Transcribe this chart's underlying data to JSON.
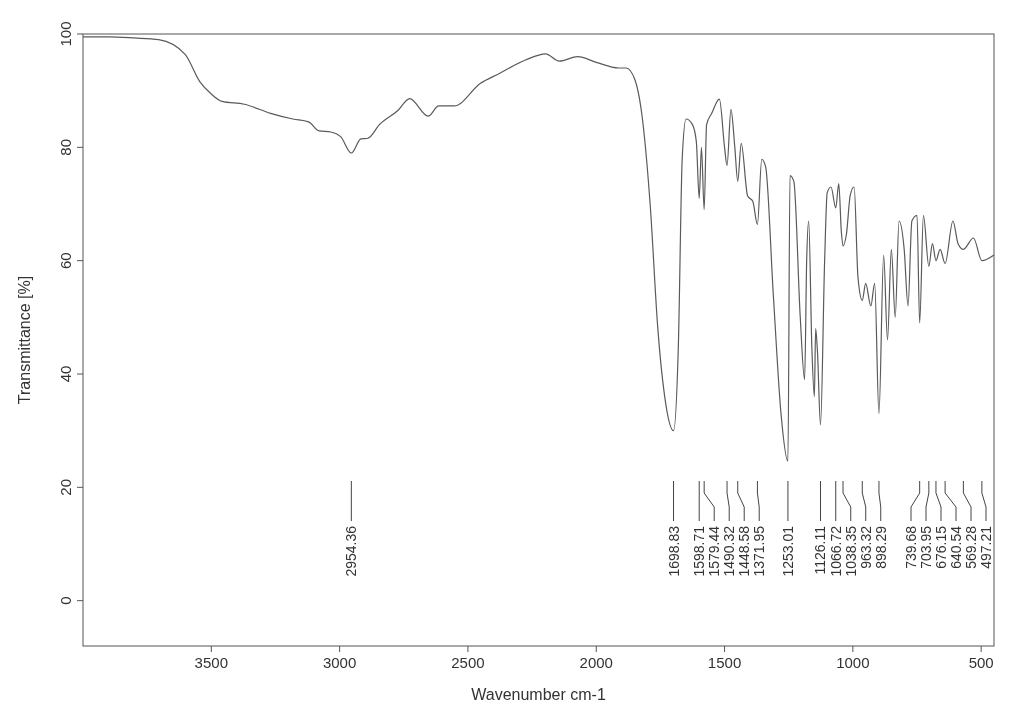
{
  "chart_data": {
    "type": "line",
    "xlabel": "Wavenumber cm-1",
    "ylabel": "Transmittance [%]",
    "xlim": [
      4000,
      450
    ],
    "ylim": [
      -8,
      100
    ],
    "xticks": [
      3500,
      3000,
      2500,
      2000,
      1500,
      1000,
      500
    ],
    "yticks": [
      0,
      20,
      40,
      60,
      80,
      100
    ],
    "series": [
      {
        "color": "#5a5a5a",
        "x": [
          4000,
          3900,
          3800,
          3705,
          3602,
          3545,
          3500,
          3458,
          3371,
          3269,
          3182,
          3121,
          3080,
          3034,
          2996,
          2954.36,
          2917,
          2890,
          2845,
          2773,
          2727,
          2655,
          2614,
          2553,
          2451,
          2379,
          2276,
          2197,
          2144,
          2072,
          2000,
          1913,
          1883,
          1850,
          1820,
          1790,
          1760,
          1730,
          1698.83,
          1680,
          1665,
          1650,
          1625,
          1610,
          1598.71,
          1590,
          1579.44,
          1570,
          1550,
          1520,
          1500,
          1490.32,
          1475,
          1460,
          1448.58,
          1435,
          1410,
          1390,
          1371.95,
          1355,
          1340,
          1310,
          1280,
          1253.01,
          1245,
          1230,
          1205,
          1188,
          1180,
          1172,
          1160,
          1150,
          1145,
          1138,
          1126.11,
          1110,
          1100,
          1085,
          1066.72,
          1055,
          1045,
          1038.35,
          1025,
          1010,
          995,
          980,
          963.32,
          950,
          930,
          915,
          898.29,
          880,
          865,
          850,
          835,
          820,
          800,
          785,
          770,
          750,
          739.68,
          725,
          703.95,
          690,
          676.15,
          660,
          640.54,
          610,
          590,
          569.28,
          530,
          497.21,
          450
        ],
        "values": [
          99.5,
          99.5,
          99.3,
          99,
          96.4,
          91.6,
          89.4,
          88.1,
          87.6,
          86,
          85,
          84.5,
          82.9,
          82.7,
          81.9,
          79,
          81.5,
          81.6,
          84,
          86.5,
          88.6,
          85.5,
          87.3,
          87.3,
          91.3,
          93,
          95.4,
          96.5,
          95.2,
          96,
          95,
          94,
          94,
          92,
          85,
          70,
          48,
          35,
          30,
          45,
          78,
          85,
          84,
          81,
          71,
          80,
          69,
          84,
          86,
          88.5,
          80,
          76.8,
          86.7,
          80,
          74,
          80.7,
          71.4,
          70.5,
          66.4,
          77.9,
          76.6,
          54,
          33,
          24.6,
          75,
          74,
          50,
          39,
          60,
          67,
          45,
          36,
          48,
          44,
          31,
          60,
          72,
          73,
          69.3,
          73.6,
          65.2,
          62.6,
          64.7,
          71.6,
          73,
          57,
          53,
          56,
          52,
          56,
          33,
          61,
          46,
          62,
          50,
          67,
          62,
          52,
          67,
          68,
          49,
          68,
          59,
          63,
          60,
          62,
          59.5,
          67,
          63,
          62,
          64,
          60,
          61
        ]
      }
    ],
    "annotations": [
      {
        "text": "2954.36",
        "x": 2954.36
      },
      {
        "text": "1698.83",
        "x": 1698.83
      },
      {
        "text": "1598.71",
        "x": 1598.71
      },
      {
        "text": "1579.44",
        "x": 1579.44
      },
      {
        "text": "1490.32",
        "x": 1490.32
      },
      {
        "text": "1448.58",
        "x": 1448.58
      },
      {
        "text": "1371.95",
        "x": 1371.95
      },
      {
        "text": "1253.01",
        "x": 1253.01
      },
      {
        "text": "1126.11",
        "x": 1126.11
      },
      {
        "text": "1066.72",
        "x": 1066.72
      },
      {
        "text": "1038.35",
        "x": 1038.35
      },
      {
        "text": "963.32",
        "x": 963.32
      },
      {
        "text": "898.29",
        "x": 898.29
      },
      {
        "text": "739.68",
        "x": 739.68
      },
      {
        "text": "703.95",
        "x": 703.95
      },
      {
        "text": "676.15",
        "x": 676.15
      },
      {
        "text": "640.54",
        "x": 640.54
      },
      {
        "text": "569.28",
        "x": 569.28
      },
      {
        "text": "497.21",
        "x": 497.21
      }
    ]
  }
}
